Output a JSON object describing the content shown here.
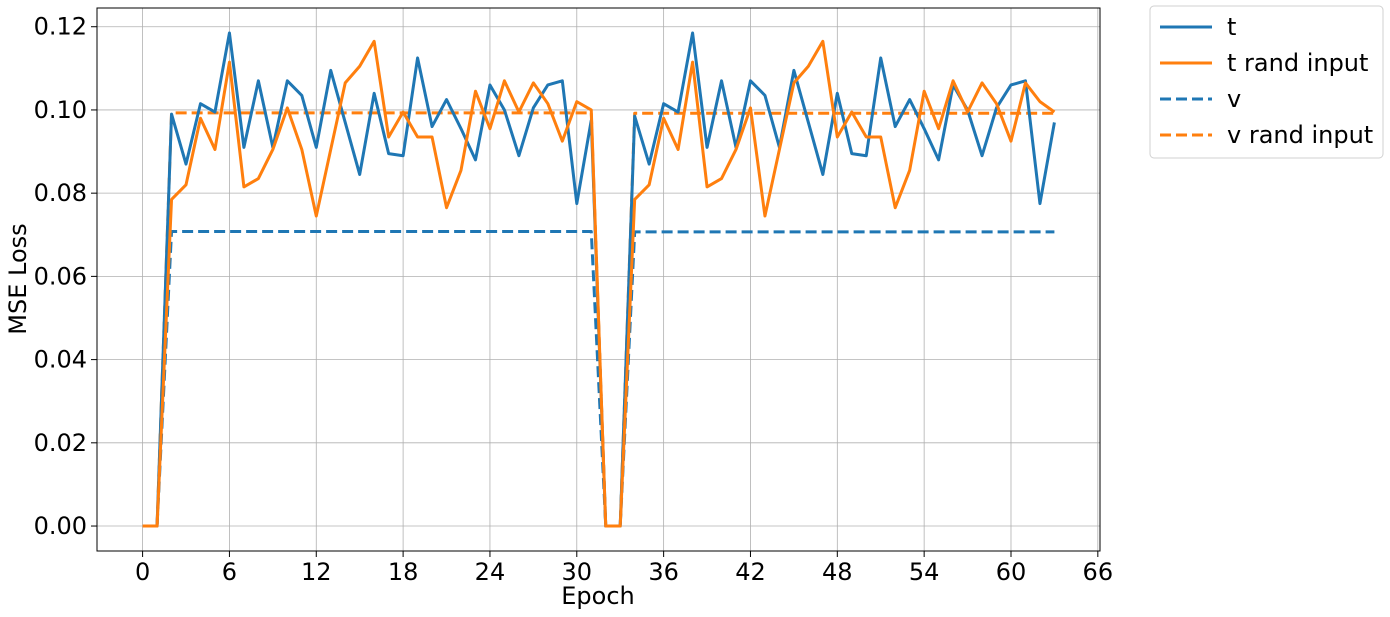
{
  "chart_data": {
    "type": "line",
    "title": "",
    "xlabel": "Epoch",
    "ylabel": "MSE Loss",
    "xlim": [
      -3.15,
      66.15
    ],
    "ylim": [
      -0.006,
      0.1245
    ],
    "xticks": [
      0,
      6,
      12,
      18,
      24,
      30,
      36,
      42,
      48,
      54,
      60,
      66
    ],
    "yticks": [
      0.0,
      0.02,
      0.04,
      0.06,
      0.08,
      0.1,
      0.12
    ],
    "ytick_labels": [
      "0.00",
      "0.02",
      "0.04",
      "0.06",
      "0.08",
      "0.10",
      "0.12"
    ],
    "grid": true,
    "legend_position": "outside-top-right",
    "series": [
      {
        "name": "t",
        "color": "#1f77b4",
        "style": "solid",
        "values": [
          0,
          0,
          0.099,
          0.087,
          0.1015,
          0.0995,
          0.1185,
          0.091,
          0.107,
          0.091,
          0.107,
          0.1035,
          0.091,
          0.1095,
          0.097,
          0.0845,
          0.104,
          0.0895,
          0.089,
          0.1125,
          0.096,
          0.1025,
          0.0955,
          0.088,
          0.106,
          0.1,
          0.089,
          0.1005,
          0.106,
          0.107,
          0.0775,
          0.0975,
          0,
          0,
          0.0985,
          0.087,
          0.1015,
          0.0995,
          0.1185,
          0.091,
          0.107,
          0.091,
          0.107,
          0.1035,
          0.091,
          0.1095,
          0.097,
          0.0845,
          0.104,
          0.0895,
          0.089,
          0.1125,
          0.096,
          0.1025,
          0.0955,
          0.088,
          0.106,
          0.1,
          0.089,
          0.1005,
          0.106,
          0.107,
          0.0775,
          0.097
        ]
      },
      {
        "name": "t rand input",
        "color": "#ff7f0e",
        "style": "solid",
        "values": [
          0,
          0,
          0.0785,
          0.082,
          0.098,
          0.0905,
          0.1115,
          0.0815,
          0.0835,
          0.0905,
          0.1005,
          0.0905,
          0.0745,
          0.0905,
          0.1065,
          0.1105,
          0.1165,
          0.0935,
          0.0995,
          0.0935,
          0.0935,
          0.0765,
          0.0855,
          0.1045,
          0.0955,
          0.107,
          0.0995,
          0.1065,
          0.1015,
          0.0925,
          0.102,
          0.1,
          0,
          0,
          0.0785,
          0.082,
          0.098,
          0.0905,
          0.1115,
          0.0815,
          0.0835,
          0.0905,
          0.1005,
          0.0745,
          0.0905,
          0.1065,
          0.1105,
          0.1165,
          0.0935,
          0.0995,
          0.0935,
          0.0935,
          0.0765,
          0.0855,
          0.1045,
          0.0955,
          0.107,
          0.0995,
          0.1065,
          0.1015,
          0.0925,
          0.1065,
          0.102,
          0.0995
        ]
      },
      {
        "name": "v",
        "color": "#1f77b4",
        "style": "dashed",
        "values": [
          0,
          0,
          0.0708,
          0.0708,
          0.0708,
          0.0708,
          0.0708,
          0.0708,
          0.0708,
          0.0708,
          0.0708,
          0.0708,
          0.0708,
          0.0708,
          0.0708,
          0.0708,
          0.0708,
          0.0708,
          0.0708,
          0.0708,
          0.0708,
          0.0708,
          0.0708,
          0.0708,
          0.0708,
          0.0708,
          0.0708,
          0.0708,
          0.0708,
          0.0708,
          0.0708,
          0.0708,
          0,
          0,
          0.0707,
          0.0707,
          0.0707,
          0.0707,
          0.0707,
          0.0707,
          0.0707,
          0.0707,
          0.0707,
          0.0707,
          0.0707,
          0.0707,
          0.0707,
          0.0707,
          0.0707,
          0.0707,
          0.0707,
          0.0707,
          0.0707,
          0.0707,
          0.0707,
          0.0707,
          0.0707,
          0.0707,
          0.0707,
          0.0707,
          0.0707,
          0.0707,
          0.0707,
          0.0707
        ]
      },
      {
        "name": "v rand input",
        "color": "#ff7f0e",
        "style": "dashed",
        "values": [
          0,
          0,
          0.0993,
          0.0993,
          0.0993,
          0.0993,
          0.0993,
          0.0993,
          0.0993,
          0.0993,
          0.0993,
          0.0993,
          0.0993,
          0.0993,
          0.0993,
          0.0993,
          0.0993,
          0.0993,
          0.0993,
          0.0993,
          0.0993,
          0.0993,
          0.0993,
          0.0993,
          0.0993,
          0.0993,
          0.0993,
          0.0993,
          0.0993,
          0.0993,
          0.0993,
          0.0993,
          0,
          0,
          0.0992,
          0.0992,
          0.0992,
          0.0992,
          0.0992,
          0.0992,
          0.0992,
          0.0992,
          0.0992,
          0.0992,
          0.0992,
          0.0992,
          0.0992,
          0.0992,
          0.0992,
          0.0992,
          0.0992,
          0.0992,
          0.0992,
          0.0992,
          0.0992,
          0.0992,
          0.0992,
          0.0992,
          0.0992,
          0.0992,
          0.0992,
          0.0992,
          0.0992,
          0.0992
        ]
      }
    ]
  }
}
